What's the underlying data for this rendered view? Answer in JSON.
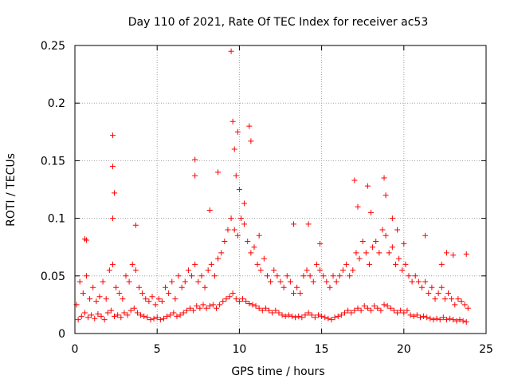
{
  "chart_data": {
    "type": "scatter",
    "title": "Day 110 of 2021, Rate Of TEC Index for receiver ac53",
    "xlabel": "GPS time / hours",
    "ylabel": "ROTI / TECUs",
    "xlim": [
      0,
      25
    ],
    "ylim": [
      0,
      0.25
    ],
    "xticks": [
      0,
      5,
      10,
      15,
      20,
      25
    ],
    "xtick_labels": [
      "0",
      "5",
      "10",
      "15",
      "20",
      "25"
    ],
    "yticks": [
      0,
      0.05,
      0.1,
      0.15,
      0.2,
      0.25
    ],
    "ytick_labels": [
      "0",
      "0.05",
      "0.1",
      "0.15",
      "0.2",
      "0.25"
    ],
    "grid": true,
    "marker": "+",
    "color": "#ff0000",
    "series": [
      {
        "x": [
          0.1,
          0.3,
          0.5,
          0.7,
          0.9,
          1.1,
          1.3,
          1.5,
          1.7,
          1.9,
          2.1,
          2.3,
          2.5,
          2.7,
          2.9,
          3.1,
          3.3,
          3.5,
          3.7,
          3.9,
          4.1,
          4.3,
          4.5,
          4.7,
          4.9,
          5.1,
          5.3,
          5.5,
          5.7,
          5.9,
          6.1,
          6.3,
          6.5,
          6.7,
          6.9,
          7.1,
          7.3,
          7.5,
          7.7,
          7.9,
          8.1,
          8.3,
          8.5,
          8.7,
          8.9,
          9.1,
          9.3,
          9.5,
          9.7,
          9.9,
          10.1,
          10.3,
          10.5,
          10.7,
          10.9,
          11.1,
          11.3,
          11.5,
          11.7,
          11.9,
          12.1,
          12.3,
          12.5,
          12.7,
          12.9,
          13.1,
          13.3,
          13.5,
          13.7,
          13.9,
          14.1,
          14.3,
          14.5,
          14.7,
          14.9,
          15.1,
          15.3,
          15.5,
          15.7,
          15.9,
          16.1,
          16.3,
          16.5,
          16.7,
          16.9,
          17.1,
          17.3,
          17.5,
          17.7,
          17.9,
          18.1,
          18.3,
          18.5,
          18.7,
          18.9,
          19.1,
          19.3,
          19.5,
          19.7,
          19.9,
          20.1,
          20.3,
          20.5,
          20.7,
          20.9,
          21.1,
          21.3,
          21.5,
          21.7,
          21.9,
          22.1,
          22.3,
          22.5,
          22.7,
          22.9,
          23.1,
          23.3,
          23.5,
          23.7,
          23.9,
          0.2,
          0.4,
          0.6,
          0.8,
          1.0,
          1.2,
          1.4,
          1.6,
          1.8,
          2.0,
          2.2,
          2.4,
          2.6,
          2.8,
          3.0,
          3.2,
          3.4,
          3.6,
          3.8,
          4.0,
          4.2,
          4.4,
          4.6,
          4.8,
          5.0,
          5.2,
          5.4,
          5.6,
          5.8,
          6.0,
          6.2,
          6.4,
          6.6,
          6.8,
          7.0,
          7.2,
          7.4,
          7.6,
          7.8,
          8.0,
          8.2,
          8.4,
          8.6,
          8.8,
          9.0,
          9.2,
          9.4,
          9.6,
          9.8,
          10.0,
          10.2,
          10.4,
          10.6,
          10.8,
          11.0,
          11.2,
          11.4,
          11.6,
          11.8,
          12.0,
          12.2,
          12.4,
          12.6,
          12.8,
          13.0,
          13.2,
          13.4,
          13.6,
          13.8,
          14.0,
          14.2,
          14.4,
          14.6,
          14.8,
          15.0,
          15.2,
          15.4,
          15.6,
          15.8,
          16.0,
          16.2,
          16.4,
          16.6,
          16.8,
          17.0,
          17.2,
          17.4,
          17.6,
          17.8,
          18.0,
          18.2,
          18.4,
          18.6,
          18.8,
          19.0,
          19.2,
          19.4,
          19.6,
          19.8,
          20.0,
          20.2,
          20.4,
          20.6,
          20.8,
          21.0,
          21.2,
          21.4,
          21.6,
          21.8,
          22.0,
          22.2,
          22.4,
          22.6,
          22.8,
          23.0,
          23.2,
          23.4,
          23.6,
          23.8,
          0.6,
          0.7,
          2.3,
          2.3,
          2.4,
          2.3,
          3.7,
          7.3,
          7.3,
          8.2,
          8.7,
          9.5,
          9.6,
          9.7,
          9.8,
          9.9,
          10.0,
          10.3,
          10.6,
          10.7,
          11.2,
          13.3,
          14.2,
          14.9,
          17.0,
          17.2,
          17.8,
          18.0,
          18.8,
          18.9,
          19.3,
          19.6,
          20.0,
          21.3,
          22.3,
          22.6,
          23.0,
          23.8
        ],
        "y": [
          0.025,
          0.045,
          0.035,
          0.05,
          0.03,
          0.04,
          0.028,
          0.032,
          0.045,
          0.03,
          0.055,
          0.06,
          0.04,
          0.035,
          0.03,
          0.05,
          0.045,
          0.06,
          0.055,
          0.04,
          0.035,
          0.03,
          0.028,
          0.032,
          0.025,
          0.03,
          0.028,
          0.04,
          0.035,
          0.045,
          0.03,
          0.05,
          0.04,
          0.045,
          0.055,
          0.05,
          0.06,
          0.045,
          0.05,
          0.04,
          0.055,
          0.06,
          0.05,
          0.065,
          0.07,
          0.08,
          0.09,
          0.1,
          0.09,
          0.085,
          0.1,
          0.095,
          0.08,
          0.07,
          0.075,
          0.06,
          0.055,
          0.065,
          0.05,
          0.045,
          0.055,
          0.05,
          0.045,
          0.04,
          0.05,
          0.045,
          0.035,
          0.04,
          0.035,
          0.05,
          0.055,
          0.05,
          0.045,
          0.06,
          0.055,
          0.05,
          0.045,
          0.04,
          0.05,
          0.045,
          0.05,
          0.055,
          0.06,
          0.05,
          0.055,
          0.07,
          0.065,
          0.08,
          0.07,
          0.06,
          0.075,
          0.08,
          0.07,
          0.09,
          0.085,
          0.07,
          0.075,
          0.06,
          0.065,
          0.055,
          0.06,
          0.05,
          0.045,
          0.05,
          0.045,
          0.04,
          0.045,
          0.035,
          0.04,
          0.03,
          0.035,
          0.04,
          0.03,
          0.035,
          0.03,
          0.025,
          0.03,
          0.028,
          0.025,
          0.022,
          0.012,
          0.015,
          0.018,
          0.014,
          0.016,
          0.013,
          0.017,
          0.015,
          0.012,
          0.018,
          0.02,
          0.015,
          0.016,
          0.014,
          0.018,
          0.016,
          0.02,
          0.022,
          0.018,
          0.016,
          0.015,
          0.014,
          0.012,
          0.013,
          0.014,
          0.012,
          0.013,
          0.015,
          0.016,
          0.018,
          0.015,
          0.016,
          0.018,
          0.02,
          0.022,
          0.02,
          0.024,
          0.022,
          0.025,
          0.022,
          0.024,
          0.025,
          0.022,
          0.025,
          0.028,
          0.03,
          0.032,
          0.035,
          0.03,
          0.028,
          0.03,
          0.028,
          0.026,
          0.025,
          0.024,
          0.022,
          0.02,
          0.022,
          0.02,
          0.018,
          0.02,
          0.018,
          0.016,
          0.015,
          0.016,
          0.015,
          0.014,
          0.015,
          0.014,
          0.016,
          0.018,
          0.016,
          0.014,
          0.016,
          0.015,
          0.014,
          0.013,
          0.012,
          0.014,
          0.015,
          0.016,
          0.018,
          0.02,
          0.018,
          0.02,
          0.022,
          0.02,
          0.024,
          0.022,
          0.02,
          0.024,
          0.022,
          0.02,
          0.025,
          0.024,
          0.022,
          0.02,
          0.018,
          0.02,
          0.018,
          0.02,
          0.016,
          0.015,
          0.016,
          0.014,
          0.015,
          0.014,
          0.013,
          0.012,
          0.013,
          0.012,
          0.014,
          0.012,
          0.013,
          0.012,
          0.011,
          0.012,
          0.011,
          0.01,
          0.082,
          0.081,
          0.172,
          0.145,
          0.122,
          0.1,
          0.094,
          0.151,
          0.137,
          0.107,
          0.14,
          0.245,
          0.184,
          0.16,
          0.137,
          0.175,
          0.125,
          0.113,
          0.18,
          0.167,
          0.085,
          0.095,
          0.095,
          0.078,
          0.133,
          0.11,
          0.128,
          0.105,
          0.135,
          0.12,
          0.1,
          0.09,
          0.078,
          0.085,
          0.06,
          0.07,
          0.068,
          0.069
        ]
      }
    ]
  }
}
